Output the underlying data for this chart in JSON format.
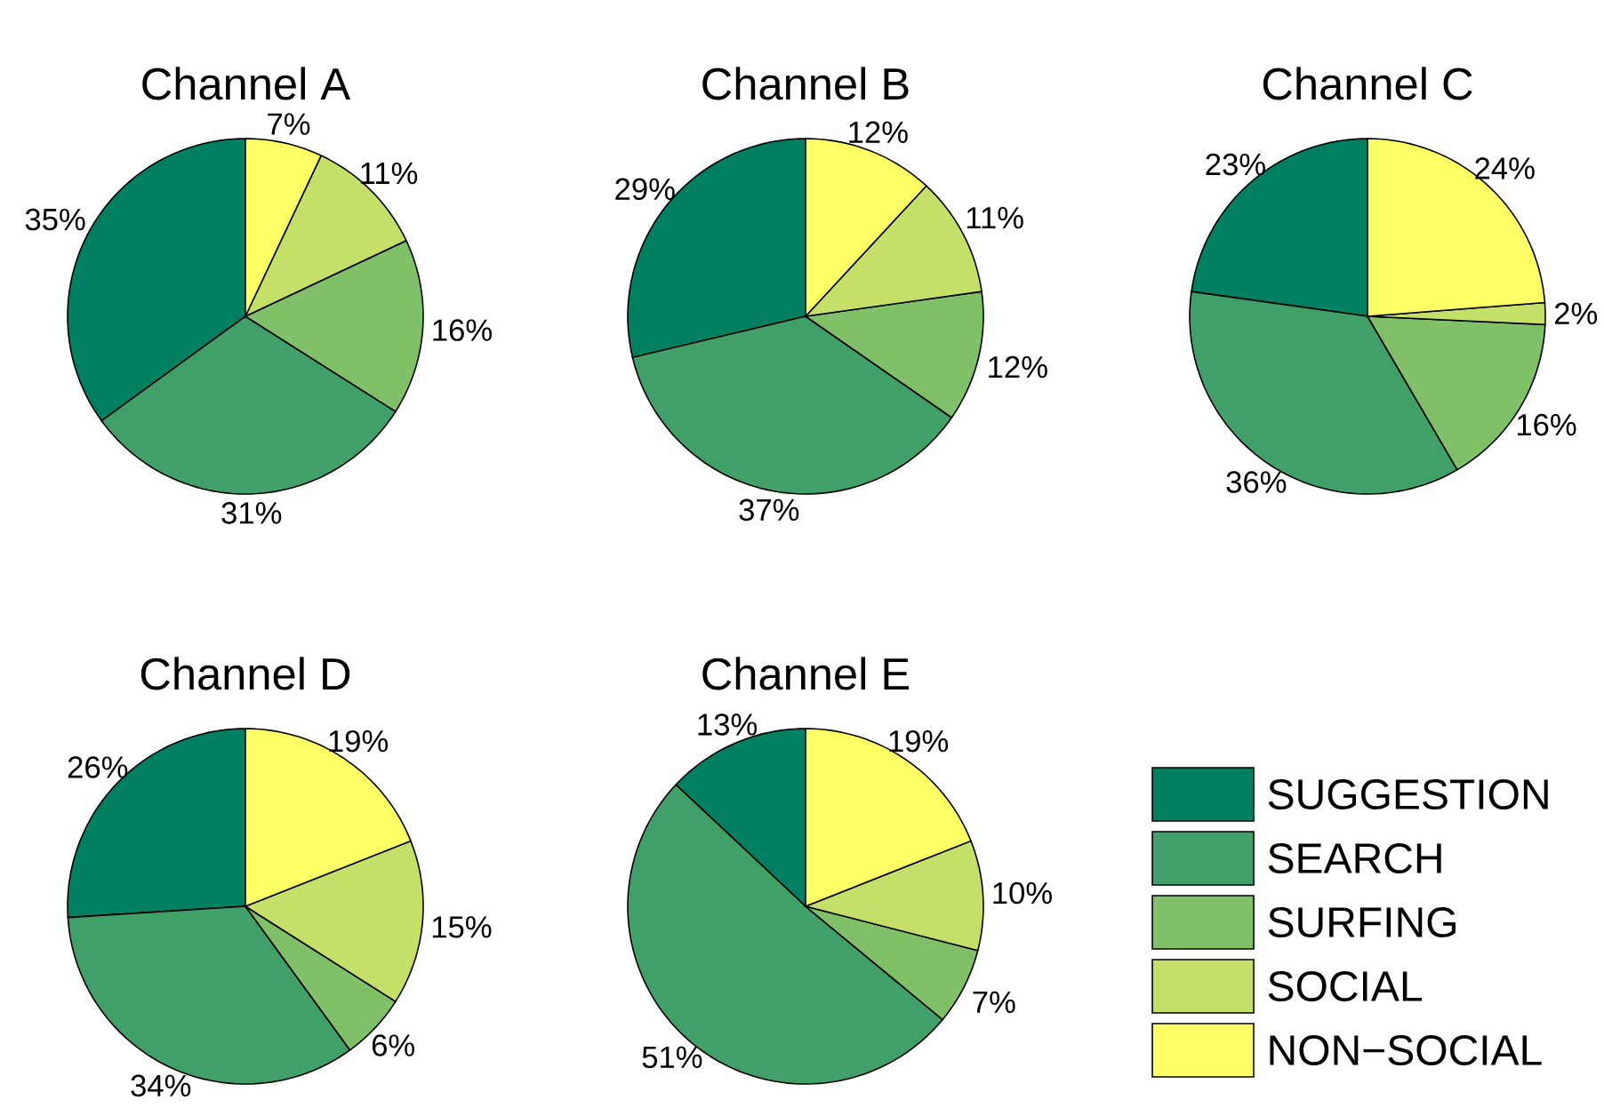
{
  "chart_data": [
    {
      "type": "pie",
      "title": "Channel A",
      "values": [
        35,
        31,
        16,
        11,
        7
      ],
      "colors": [
        "#008060",
        "#40a068",
        "#80c068",
        "#c4e068",
        "#ffff66"
      ],
      "value_labels": [
        "35%",
        "31%",
        "16%",
        "11%",
        "7%"
      ]
    },
    {
      "type": "pie",
      "title": "Channel B",
      "values": [
        29,
        37,
        12,
        11,
        12
      ],
      "colors": [
        "#008060",
        "#40a068",
        "#80c068",
        "#c4e068",
        "#ffff66"
      ],
      "value_labels": [
        "29%",
        "37%",
        "12%",
        "11%",
        "12%"
      ]
    },
    {
      "type": "pie",
      "title": "Channel C",
      "values": [
        23,
        36,
        16,
        2,
        24
      ],
      "colors": [
        "#008060",
        "#40a068",
        "#80c068",
        "#c4e068",
        "#ffff66"
      ],
      "value_labels": [
        "23%",
        "36%",
        "16%",
        "2%",
        "24%"
      ]
    },
    {
      "type": "pie",
      "title": "Channel D",
      "values": [
        26,
        34,
        6,
        15,
        19
      ],
      "colors": [
        "#008060",
        "#40a068",
        "#80c068",
        "#c4e068",
        "#ffff66"
      ],
      "value_labels": [
        "26%",
        "34%",
        "6%",
        "15%",
        "19%"
      ]
    },
    {
      "type": "pie",
      "title": "Channel E",
      "categories": [
        "SUGGESTION",
        "SEARCH",
        "SURFING",
        "SOCIAL",
        "NON−SOCIAL"
      ],
      "values": [
        13,
        51,
        7,
        10,
        19
      ],
      "colors": [
        "#008060",
        "#40a068",
        "#80c068",
        "#c4e068",
        "#ffff66"
      ],
      "value_labels": [
        "13%",
        "51%",
        "7%",
        "10%",
        "19%"
      ],
      "legend": "right"
    }
  ]
}
